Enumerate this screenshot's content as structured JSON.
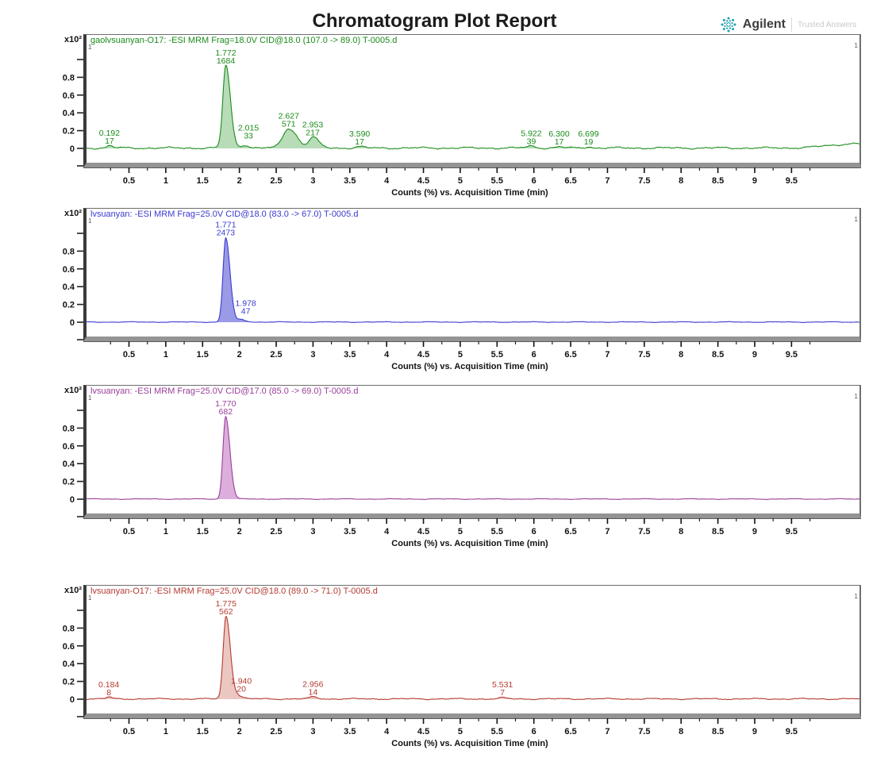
{
  "header": {
    "title": "Chromatogram Plot Report",
    "brand": "Agilent",
    "brand_tagline": "Trusted Answers",
    "spark_color": "#1b9fb0"
  },
  "axes": {
    "y_scale_label": "x10²",
    "y_ticks": [
      {
        "v": 1.0,
        "label": ""
      },
      {
        "v": 0.8,
        "label": "0.8"
      },
      {
        "v": 0.6,
        "label": "0.6"
      },
      {
        "v": 0.4,
        "label": "0.4"
      },
      {
        "v": 0.2,
        "label": "0.2"
      },
      {
        "v": 0.0,
        "label": "0"
      },
      {
        "v": -0.19,
        "label": ""
      }
    ],
    "x_ticks": [
      {
        "v": 0.5,
        "label": "0.5"
      },
      {
        "v": 1,
        "label": "1"
      },
      {
        "v": 1.5,
        "label": "1.5"
      },
      {
        "v": 2,
        "label": "2"
      },
      {
        "v": 2.5,
        "label": "2.5"
      },
      {
        "v": 3,
        "label": "3"
      },
      {
        "v": 3.5,
        "label": "3.5"
      },
      {
        "v": 4,
        "label": "4"
      },
      {
        "v": 4.5,
        "label": "4.5"
      },
      {
        "v": 5,
        "label": "5"
      },
      {
        "v": 5.5,
        "label": "5.5"
      },
      {
        "v": 6,
        "label": "6"
      },
      {
        "v": 6.5,
        "label": "6.5"
      },
      {
        "v": 7,
        "label": "7"
      },
      {
        "v": 7.5,
        "label": "7.5"
      },
      {
        "v": 8,
        "label": "8"
      },
      {
        "v": 8.5,
        "label": "8.5"
      },
      {
        "v": 9,
        "label": "9"
      },
      {
        "v": 9.5,
        "label": "9.5"
      }
    ],
    "x_label": "Counts (%) vs. Acquisition Time (min)",
    "x_range_min": -0.12,
    "x_range_max": 10.38
  },
  "chart_data": [
    {
      "type": "area",
      "title": "gaolvsuanyan-O17: -ESI MRM Frag=18.0V CID@18.0 (107.0 -> 89.0) T-0005.d",
      "color": "#1a8c1a",
      "fill": "#b7dcb7",
      "noise": 0.013,
      "seed": 1,
      "marker_left": "1",
      "marker_right": "1",
      "ylabel": "Counts (%) x10^2",
      "peaks": [
        {
          "rt": "0.192",
          "area": "17",
          "h": 0.025,
          "wl": 0.035,
          "wr": 0.045
        },
        {
          "rt": "1.772",
          "area": "1684",
          "h": 0.93,
          "wl": 0.04,
          "wr": 0.062
        },
        {
          "rt": "2.015",
          "area": "33",
          "h": 0.035,
          "wl": 0.04,
          "wr": 0.06,
          "lh": 0.085,
          "dx": 6
        },
        {
          "rt": "2.627",
          "area": "571",
          "h": 0.22,
          "wl": 0.08,
          "wr": 0.11
        },
        {
          "rt": "2.953",
          "area": "217",
          "h": 0.12,
          "wl": 0.05,
          "wr": 0.08
        },
        {
          "rt": "3.590",
          "area": "17",
          "h": 0.015,
          "wl": 0.05,
          "wr": 0.05
        },
        {
          "rt": "5.922",
          "area": "39",
          "h": 0.022,
          "wl": 0.06,
          "wr": 0.06
        },
        {
          "rt": "6.300",
          "area": "17",
          "h": 0.013,
          "wl": 0.05,
          "wr": 0.05
        },
        {
          "rt": "6.699",
          "area": "19",
          "h": 0.014,
          "wl": 0.05,
          "wr": 0.05
        }
      ],
      "baseline_features": [
        {
          "t": 10.35,
          "h": 0.05,
          "wl": 0.35,
          "wr": 0.2
        }
      ]
    },
    {
      "type": "area",
      "title": "lvsuanyan: -ESI MRM Frag=25.0V CID@18.0 (83.0 -> 67.0) T-0005.d",
      "color": "#3a3ad0",
      "fill": "#9a9ae6",
      "noise": 0.005,
      "seed": 2,
      "marker_left": "1",
      "marker_right": "1",
      "ylabel": "Counts (%) x10^2",
      "peaks": [
        {
          "rt": "1.771",
          "area": "2473",
          "h": 0.95,
          "wl": 0.036,
          "wr": 0.058
        },
        {
          "rt": "1.978",
          "area": "47",
          "h": 0.028,
          "wl": 0.04,
          "wr": 0.065,
          "lh": 0.065,
          "dx": 6
        }
      ],
      "baseline_features": []
    },
    {
      "type": "area",
      "title": "lvsuanyan: -ESI MRM Frag=25.0V CID@17.0 (85.0 -> 69.0) T-0005.d",
      "color": "#9a3d9a",
      "fill": "#dcaedc",
      "noise": 0.005,
      "seed": 3,
      "marker_left": "1",
      "marker_right": "1",
      "ylabel": "Counts (%) x10^2",
      "peaks": [
        {
          "rt": "1.770",
          "area": "682",
          "h": 0.93,
          "wl": 0.036,
          "wr": 0.058
        }
      ],
      "baseline_features": []
    },
    {
      "type": "area",
      "title": "lvsuanyan-O17: -ESI MRM Frag=25.0V CID@18.0 (89.0 -> 71.0) T-0005.d",
      "color": "#b43a30",
      "fill": "#ecc7c2",
      "noise": 0.009,
      "seed": 4,
      "marker_left": "1",
      "marker_right": "1",
      "ylabel": "Counts (%) x10^2",
      "peaks": [
        {
          "rt": "0.184",
          "area": "8",
          "h": 0.02,
          "wl": 0.035,
          "wr": 0.045
        },
        {
          "rt": "1.775",
          "area": "562",
          "h": 0.93,
          "wl": 0.038,
          "wr": 0.06
        },
        {
          "rt": "1.940",
          "area": "20",
          "h": 0.035,
          "wl": 0.04,
          "wr": 0.06,
          "lh": 0.06,
          "dx": 4
        },
        {
          "rt": "2.956",
          "area": "14",
          "h": 0.022,
          "wl": 0.05,
          "wr": 0.06
        },
        {
          "rt": "5.531",
          "area": "7",
          "h": 0.013,
          "wl": 0.05,
          "wr": 0.05
        }
      ],
      "baseline_features": []
    }
  ]
}
